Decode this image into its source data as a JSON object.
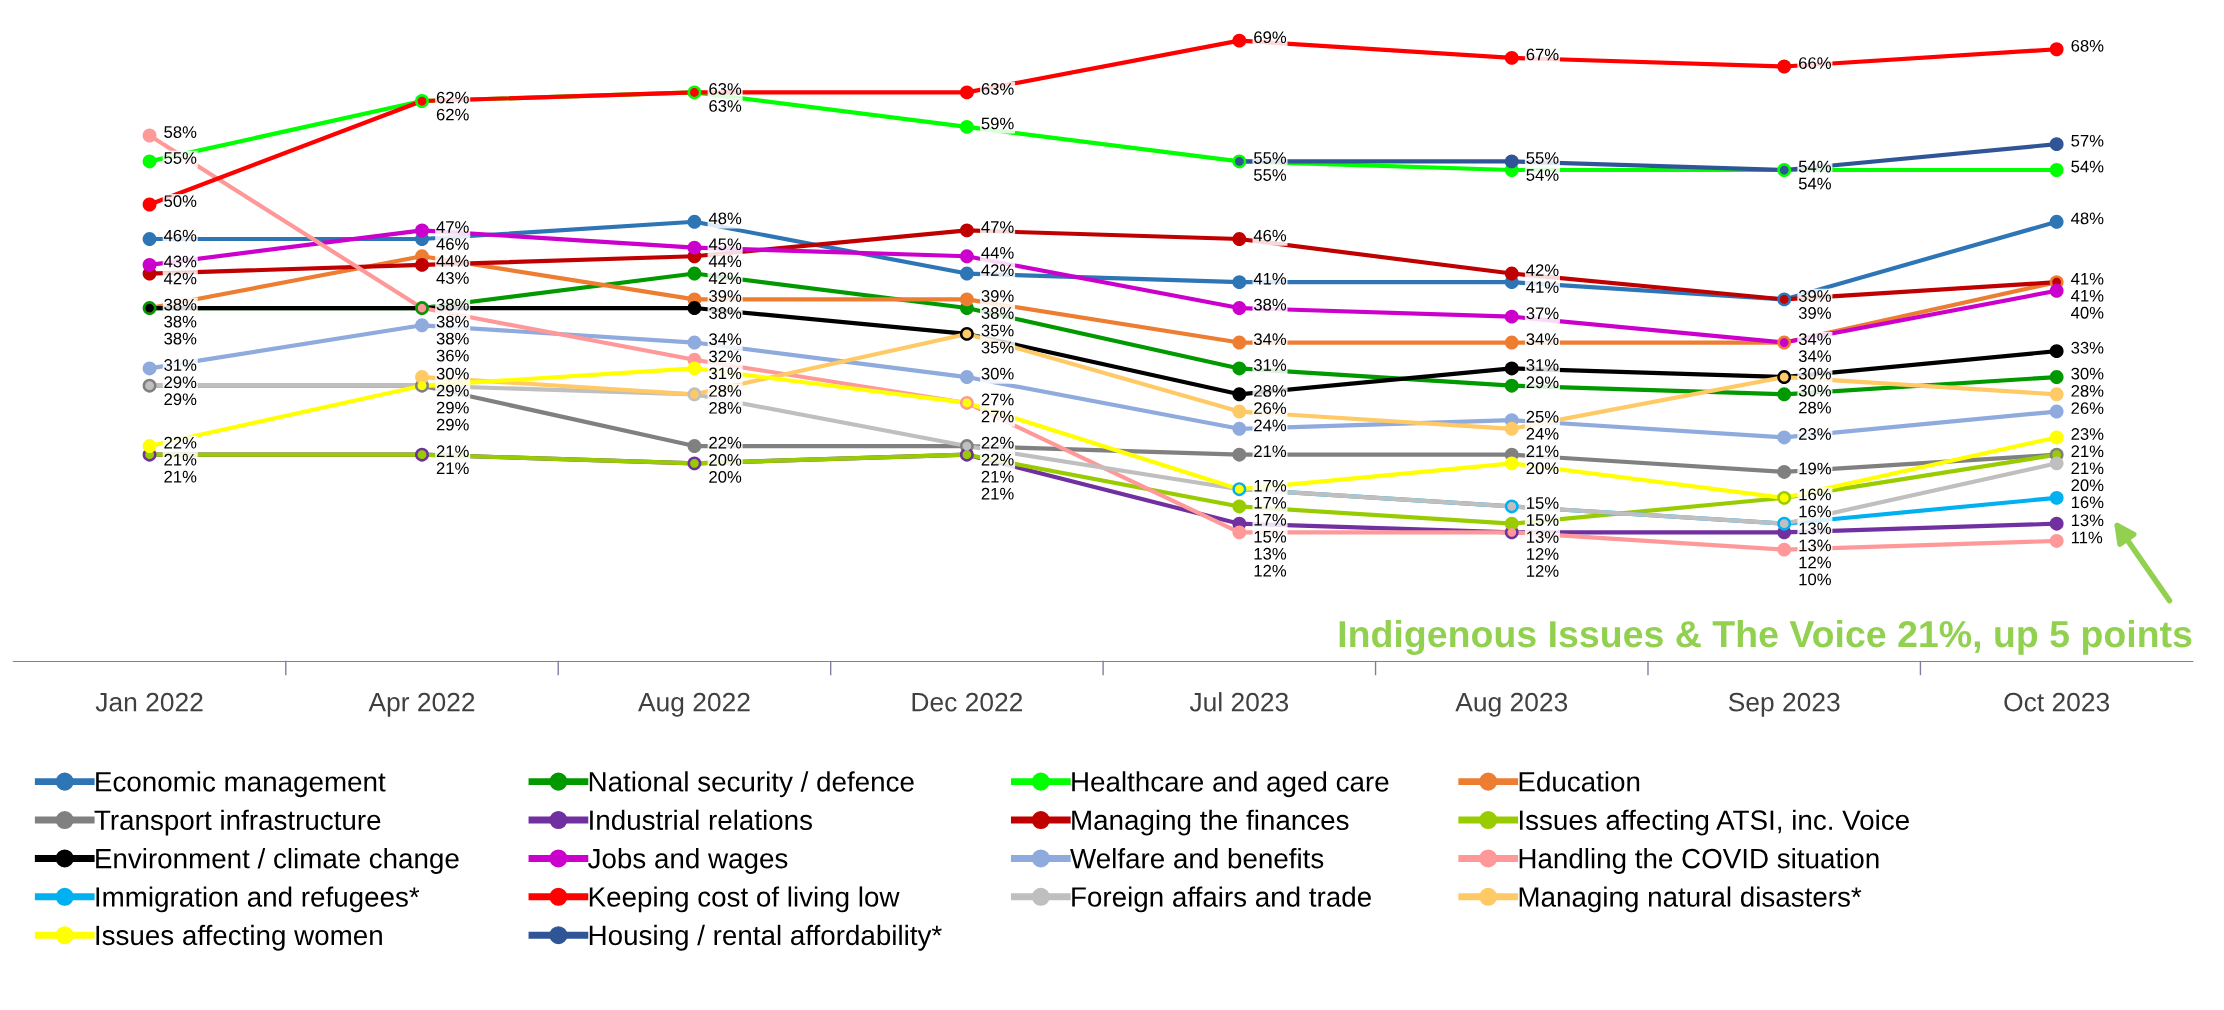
{
  "chart_data": {
    "type": "line",
    "categories": [
      "Jan 2022",
      "Apr 2022",
      "Aug 2022",
      "Dec 2022",
      "Jul 2023",
      "Aug 2023",
      "Sep 2023",
      "Oct 2023"
    ],
    "series": [
      {
        "name": "Economic management",
        "color": "#2e75b6",
        "values": [
          46,
          46,
          48,
          42,
          41,
          41,
          39,
          48
        ],
        "value_labels": [
          "46%",
          "46%",
          "48%",
          "42%",
          "41%",
          "41%",
          "39%",
          "48%"
        ]
      },
      {
        "name": "National security / defence",
        "color": "#009900",
        "values": [
          38,
          38,
          42,
          38,
          31,
          29,
          28,
          30
        ],
        "value_labels": [
          "38%",
          "38%",
          "42%",
          "38%",
          "31%",
          "29%",
          "28%",
          "30%"
        ]
      },
      {
        "name": "Healthcare and aged care",
        "color": "#00ff00",
        "values": [
          55,
          62,
          63,
          59,
          55,
          54,
          54,
          54
        ],
        "value_labels": [
          "55%",
          "62%",
          "63%",
          "59%",
          "55%",
          "54%",
          "54%",
          "54%"
        ]
      },
      {
        "name": "Education",
        "color": "#ed7d31",
        "values": [
          38,
          44,
          39,
          39,
          34,
          34,
          34,
          41
        ],
        "value_labels": [
          "38%",
          "44%",
          "39%",
          "39%",
          "34%",
          "34%",
          "34%",
          "41%"
        ]
      },
      {
        "name": "Transport infrastructure",
        "color": "#808080",
        "values": [
          29,
          29,
          22,
          22,
          21,
          21,
          19,
          21
        ],
        "value_labels": [
          "29%",
          "29%",
          "22%",
          "22%",
          "21%",
          "21%",
          "19%",
          "21%"
        ]
      },
      {
        "name": "Industrial relations",
        "color": "#7030a0",
        "values": [
          21,
          21,
          20,
          21,
          13,
          12,
          12,
          13
        ],
        "value_labels": [
          "21%",
          "21%",
          "20%",
          "21%",
          "13%",
          "12%",
          "12%",
          "13%"
        ]
      },
      {
        "name": "Managing the finances",
        "color": "#c00000",
        "values": [
          42,
          43,
          44,
          47,
          46,
          42,
          39,
          41
        ],
        "value_labels": [
          "42%",
          "43%",
          "44%",
          "47%",
          "46%",
          "42%",
          "39%",
          "41%"
        ]
      },
      {
        "name": "Issues affecting ATSI, inc. Voice",
        "color": "#99cc00",
        "values": [
          21,
          21,
          20,
          21,
          15,
          13,
          16,
          21
        ],
        "value_labels": [
          "21%",
          "21%",
          "20%",
          "21%",
          "15%",
          "13%",
          "16%",
          "21%"
        ]
      },
      {
        "name": "Environment / climate change",
        "color": "#000000",
        "values": [
          38,
          38,
          38,
          35,
          28,
          31,
          30,
          33
        ],
        "value_labels": [
          "38%",
          "38%",
          "38%",
          "35%",
          "28%",
          "31%",
          "30%",
          "33%"
        ]
      },
      {
        "name": "Jobs and wages",
        "color": "#cc00cc",
        "values": [
          43,
          47,
          45,
          44,
          38,
          37,
          34,
          40
        ],
        "value_labels": [
          "43%",
          "47%",
          "45%",
          "44%",
          "38%",
          "37%",
          "34%",
          "40%"
        ]
      },
      {
        "name": "Welfare and benefits",
        "color": "#8faadc",
        "values": [
          31,
          36,
          34,
          30,
          24,
          25,
          23,
          26
        ],
        "value_labels": [
          "31%",
          "36%",
          "34%",
          "30%",
          "24%",
          "25%",
          "23%",
          "26%"
        ]
      },
      {
        "name": "Handling the COVID situation",
        "color": "#ff9999",
        "values": [
          58,
          38,
          32,
          27,
          12,
          12,
          10,
          11
        ],
        "value_labels": [
          "58%",
          "38%",
          "32%",
          "27%",
          "12%",
          "12%",
          "10%",
          "11%"
        ]
      },
      {
        "name": "Immigration and refugees*",
        "color": "#00b0f0",
        "values": [
          null,
          null,
          null,
          null,
          17,
          15,
          13,
          16
        ],
        "value_labels": [
          null,
          null,
          null,
          null,
          "17%",
          "15%",
          "13%",
          "16%"
        ]
      },
      {
        "name": "Keeping cost of living low",
        "color": "#ff0000",
        "values": [
          50,
          62,
          63,
          63,
          69,
          67,
          66,
          68
        ],
        "value_labels": [
          "50%",
          "62%",
          "63%",
          "63%",
          "69%",
          "67%",
          "66%",
          "68%"
        ]
      },
      {
        "name": "Foreign affairs and trade",
        "color": "#bfbfbf",
        "values": [
          29,
          29,
          28,
          22,
          17,
          15,
          13,
          20
        ],
        "value_labels": [
          "29%",
          "29%",
          "28%",
          "22%",
          "17%",
          "15%",
          "13%",
          "20%"
        ]
      },
      {
        "name": "Managing natural disasters*",
        "color": "#ffc966",
        "values": [
          null,
          30,
          28,
          35,
          26,
          24,
          30,
          28
        ],
        "value_labels": [
          null,
          "30%",
          "28%",
          "35%",
          "26%",
          "24%",
          "30%",
          "28%"
        ]
      },
      {
        "name": "Issues affecting women",
        "color": "#ffff00",
        "values": [
          22,
          29,
          31,
          27,
          17,
          20,
          16,
          23
        ],
        "value_labels": [
          "22%",
          "29%",
          "31%",
          "27%",
          "17%",
          "20%",
          "16%",
          "23%"
        ]
      },
      {
        "name": "Housing / rental affordability*",
        "color": "#2f5597",
        "values": [
          null,
          null,
          null,
          null,
          55,
          55,
          54,
          57
        ],
        "value_labels": [
          null,
          null,
          null,
          null,
          "55%",
          "55%",
          "54%",
          "57%"
        ]
      }
    ],
    "tick_labels": "x",
    "legend": "bottom",
    "marker": "circle",
    "line_style": "solid",
    "annotations": [
      "Indigenous Issues & The Voice 21%, up 5 points"
    ]
  }
}
